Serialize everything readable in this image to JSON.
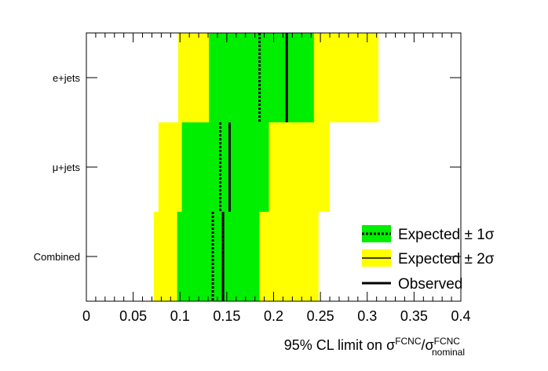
{
  "chart_data": {
    "type": "bar",
    "orientation": "horizontal",
    "categories": [
      "e+jets",
      "μ+jets",
      "Combined"
    ],
    "x_ticks": [
      "0",
      "0.05",
      "0.1",
      "0.15",
      "0.2",
      "0.25",
      "0.3",
      "0.35",
      "0.4"
    ],
    "xlim": [
      0,
      0.4
    ],
    "xlabel": {
      "prefix": "95% CL limit on σ",
      "sup1": "FCNC",
      "mid": "/σ",
      "sup2": "FCNC",
      "sub2": "nominal"
    },
    "rows": [
      {
        "category": "e+jets",
        "band2_low": 0.098,
        "band1_low": 0.131,
        "expected": 0.185,
        "observed": 0.214,
        "band1_high": 0.243,
        "band2_high": 0.312
      },
      {
        "category": "μ+jets",
        "band2_low": 0.077,
        "band1_low": 0.102,
        "expected": 0.143,
        "observed": 0.153,
        "band1_high": 0.195,
        "band2_high": 0.26
      },
      {
        "category": "Combined",
        "band2_low": 0.072,
        "band1_low": 0.097,
        "expected": 0.135,
        "observed": 0.146,
        "band1_high": 0.185,
        "band2_high": 0.248
      }
    ],
    "legend": [
      {
        "label": "Expected ± 1σ",
        "fill": "#00ee00",
        "line": "dotted"
      },
      {
        "label": "Expected ± 2σ",
        "fill": "#ffff00",
        "line": "solid"
      },
      {
        "label": "Observed",
        "fill": "none",
        "line": "solid-thick"
      }
    ],
    "legend_position": "bottom-right",
    "colors": {
      "band1": "#00ee00",
      "band2": "#ffff00",
      "line": "#000000"
    },
    "grid": false
  }
}
